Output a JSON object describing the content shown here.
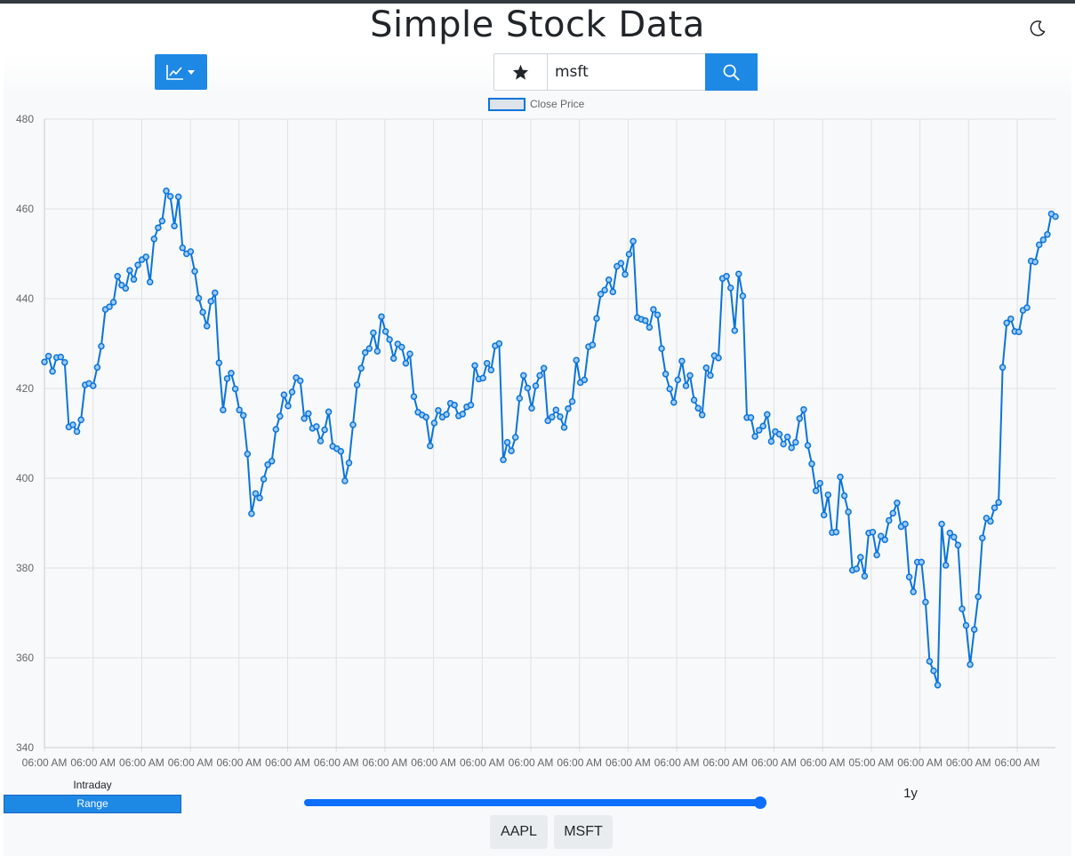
{
  "header": {
    "title": "Simple Stock Data",
    "theme_icon": "moon-icon"
  },
  "toolbar": {
    "chart_type_icon": "line-chart-icon",
    "favorite_icon": "star-icon",
    "search": {
      "value": "msft",
      "placeholder": ""
    },
    "search_icon": "search-icon"
  },
  "colors": {
    "accent": "#1e88e5",
    "line": "#0a74da",
    "panel": "#f8f9fa"
  },
  "chart_data": {
    "type": "line",
    "legend": {
      "label": "Close Price",
      "position": "top-center"
    },
    "grid": true,
    "ylim": [
      340,
      480
    ],
    "y_ticks": [
      "480",
      "460",
      "440",
      "420",
      "400",
      "380",
      "360",
      "340"
    ],
    "x_ticks": [
      "06:00 AM",
      "06:00 AM",
      "06:00 AM",
      "06:00 AM",
      "06:00 AM",
      "06:00 AM",
      "06:00 AM",
      "06:00 AM",
      "06:00 AM",
      "06:00 AM",
      "06:00 AM",
      "06:00 AM",
      "06:00 AM",
      "06:00 AM",
      "06:00 AM",
      "06:00 AM",
      "06:00 AM",
      "05:00 AM",
      "06:00 AM",
      "06:00 AM",
      "06:00 AM"
    ],
    "series": [
      {
        "name": "Close Price",
        "values": [
          425.9,
          427.2,
          423.8,
          426.9,
          427,
          425.8,
          411.4,
          411.9,
          410.4,
          413,
          420.8,
          421.1,
          420.6,
          424.7,
          429.4,
          437.6,
          438.2,
          439.2,
          445,
          443,
          442.3,
          446.3,
          444.3,
          447.5,
          448.7,
          449.3,
          443.7,
          453.3,
          455.8,
          457.3,
          464,
          462.8,
          456.2,
          462.7,
          451.3,
          450,
          450.5,
          446.1,
          440.1,
          437,
          433.9,
          439.4,
          441.3,
          425.7,
          415.2,
          422.2,
          423.4,
          419.9,
          415.2,
          414,
          405.4,
          392.1,
          396.6,
          395.6,
          399.8,
          403,
          403.8,
          410.9,
          413.8,
          418.6,
          416.1,
          419.2,
          422.4,
          421.7,
          413.3,
          414.4,
          411.1,
          411.5,
          408.3,
          410.8,
          414.8,
          407.1,
          406.6,
          406,
          399.4,
          403.4,
          411.9,
          420.8,
          424.5,
          428,
          428.9,
          432.4,
          428.3,
          436,
          432.7,
          430.9,
          426.7,
          429.9,
          429.2,
          425.6,
          427.7,
          418.2,
          414.7,
          414.1,
          413.6,
          407.2,
          412.3,
          415.1,
          413.6,
          414.2,
          416.7,
          416.3,
          413.9,
          414.3,
          415.9,
          416.3,
          425.1,
          422.1,
          422.3,
          425.6,
          424.1,
          429.5,
          430,
          404.1,
          408,
          406.1,
          409.1,
          417.8,
          422.9,
          420.1,
          415.6,
          420.6,
          422.9,
          424.5,
          412.8,
          413.6,
          415.2,
          413.7,
          411.3,
          415.5,
          417.1,
          426.3,
          421.3,
          421.9,
          429.3,
          429.7,
          435.6,
          441,
          441.9,
          444.2,
          441.5,
          447.2,
          447.9,
          445.4,
          449.9,
          452.8,
          435.8,
          435.4,
          435.1,
          433.6,
          437.6,
          436.4,
          428.9,
          423.2,
          419.9,
          416.9,
          421.9,
          426.1,
          420.6,
          422.9,
          417.4,
          415.6,
          414.1,
          424.6,
          422.9,
          427.3,
          426.8,
          444.5,
          445,
          442.4,
          432.9,
          445.5,
          440.6,
          413.5,
          413.5,
          409.3,
          410.7,
          411.6,
          414.2,
          408.2,
          410.4,
          409.8,
          407.6,
          409.2,
          406.8,
          408,
          413.3,
          415.3,
          407.3,
          403.2,
          397.2,
          398.9,
          391.8,
          396.3,
          387.9,
          388,
          400.3,
          396.1,
          392.5,
          379.5,
          379.8,
          382.4,
          378.2,
          387.8,
          388,
          382.9,
          387.1,
          386.3,
          390.6,
          392.2,
          394.5,
          389.2,
          389.8,
          378,
          374.7,
          381.3,
          381.3,
          372.4,
          359.2,
          357.1,
          353.9,
          389.8,
          380.6,
          387.8,
          386.9,
          385.1,
          370.9,
          367.2,
          358.5,
          366.3,
          373.6,
          386.7,
          391.1,
          390.4,
          393.4,
          394.6,
          424.7,
          434.6,
          435.5,
          432.7,
          432.6,
          437.4,
          438,
          448.4,
          448.2,
          452,
          453.1,
          454.3,
          458.9,
          458.3
        ]
      }
    ]
  },
  "controls": {
    "intraday_label": "Intraday",
    "range_label": "Range",
    "range_value": "1y",
    "slider_value": 1.0
  },
  "quick_symbols": [
    "AAPL",
    "MSFT"
  ]
}
